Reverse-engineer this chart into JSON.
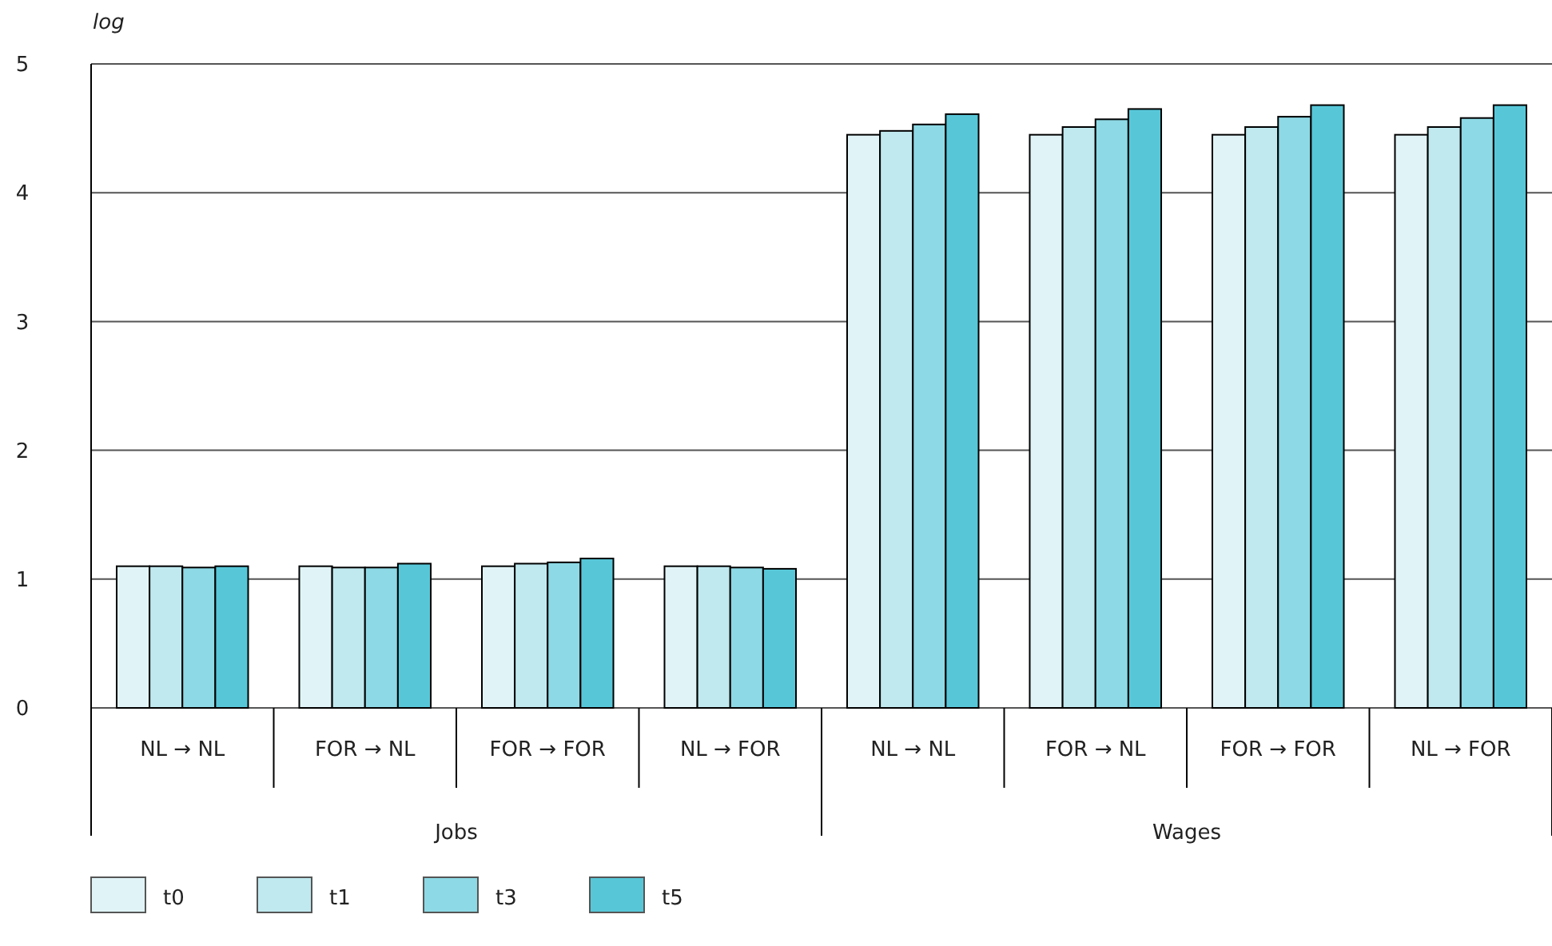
{
  "chart_data": {
    "type": "bar",
    "ylabel": "log",
    "categories": [
      "NL → NL",
      "FOR → NL",
      "FOR → FOR",
      "NL → FOR",
      "NL → NL",
      "FOR → NL",
      "FOR → FOR",
      "NL → FOR"
    ],
    "annotations": [
      "Jobs",
      "Wages"
    ],
    "series": [
      {
        "name": "t0",
        "color": "#e0f4f7",
        "values": [
          1.1,
          1.1,
          1.1,
          1.1,
          4.45,
          4.45,
          4.45,
          4.45
        ]
      },
      {
        "name": "t1",
        "color": "#bfe9ef",
        "values": [
          1.1,
          1.09,
          1.12,
          1.1,
          4.48,
          4.51,
          4.51,
          4.51
        ]
      },
      {
        "name": "t3",
        "color": "#8dd9e5",
        "values": [
          1.09,
          1.09,
          1.13,
          1.09,
          4.53,
          4.57,
          4.59,
          4.58
        ]
      },
      {
        "name": "t5",
        "color": "#57c7d8",
        "values": [
          1.1,
          1.12,
          1.16,
          1.08,
          4.61,
          4.65,
          4.68,
          4.68
        ]
      }
    ],
    "ylim": [
      0,
      5
    ],
    "yticks": [
      0,
      1,
      2,
      3,
      4,
      5
    ],
    "grid": "y",
    "legend": "bottom left"
  }
}
